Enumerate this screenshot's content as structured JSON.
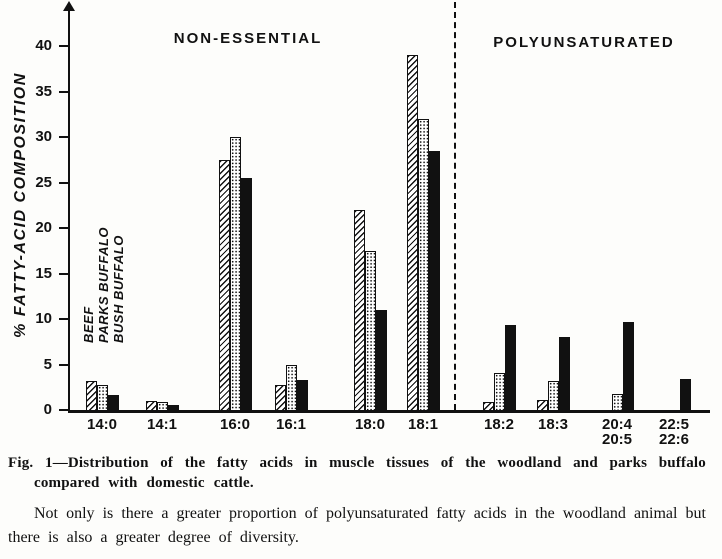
{
  "chart_data": {
    "type": "bar",
    "title": "",
    "ylabel": "% FATTY-ACID COMPOSITION",
    "ylim": [
      0,
      44
    ],
    "yticks": [
      0,
      5,
      10,
      15,
      20,
      25,
      30,
      35,
      40
    ],
    "categories": [
      "14:0",
      "14:1",
      "16:0",
      "16:1",
      "18:0",
      "18:1",
      "18:2",
      "18:3",
      "20:4\n20:5",
      "22:5\n22:6"
    ],
    "series": [
      {
        "name": "BEEF",
        "pattern": "diagonal-hatch",
        "values": [
          3.2,
          1.0,
          27.5,
          2.7,
          22.0,
          39.0,
          0.9,
          1.1,
          0,
          0
        ]
      },
      {
        "name": "PARKS BUFFALO",
        "pattern": "stipple-dots",
        "values": [
          2.8,
          0.9,
          30.0,
          5.0,
          17.5,
          32.0,
          4.1,
          3.2,
          1.8,
          0
        ]
      },
      {
        "name": "BUSH BUFFALO",
        "pattern": "solid-black",
        "values": [
          1.7,
          0.5,
          25.5,
          3.3,
          11.0,
          28.5,
          9.3,
          8.0,
          9.7,
          3.4
        ]
      }
    ],
    "sections": [
      {
        "label": "NON-ESSENTIAL",
        "category_range": [
          "14:0",
          "18:1"
        ]
      },
      {
        "label": "POLYUNSATURATED",
        "category_range": [
          "18:2",
          "22:6"
        ]
      }
    ],
    "separator": "vertical dashed line between sections",
    "legend_position": "rotated labels beside first bar group",
    "grid": false,
    "colors": {
      "ink": "#111111",
      "paper": "#fdfdfb"
    }
  },
  "caption": {
    "label": "Fig. 1",
    "text": "—Distribution of the fatty acids in muscle tissues of the woodland and parks buffalo compared with domestic cattle."
  },
  "body_text": "Not only is there a greater proportion of polyunsaturated fatty acids in the woodland animal but there is also a greater degree of diversity."
}
